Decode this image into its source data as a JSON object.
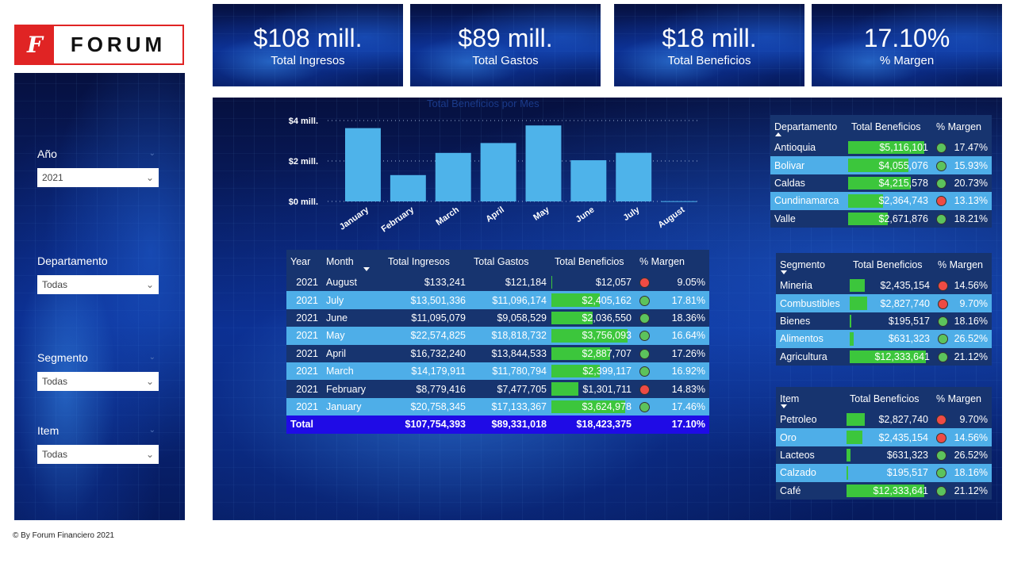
{
  "logo": {
    "letter": "F",
    "word": "FORUM"
  },
  "filters": [
    {
      "label": "Año",
      "value": "2021"
    },
    {
      "label": "Departamento",
      "value": "Todas"
    },
    {
      "label": "Segmento",
      "value": "Todas"
    },
    {
      "label": "Item",
      "value": "Todas"
    }
  ],
  "kpis": [
    {
      "value": "$108 mill.",
      "label": "Total Ingresos"
    },
    {
      "value": "$89 mill.",
      "label": "Total Gastos"
    },
    {
      "value": "$18 mill.",
      "label": "Total Beneficios"
    },
    {
      "value": "17.10%",
      "label": "% Margen"
    }
  ],
  "copyright": "© By Forum Financiero 2021",
  "chart_data": {
    "type": "bar",
    "title": "Total Beneficios por Mes",
    "categories": [
      "January",
      "February",
      "March",
      "April",
      "May",
      "June",
      "July",
      "August"
    ],
    "values": [
      3.624978,
      1.301711,
      2.399117,
      2.887707,
      3.756093,
      2.03655,
      2.405162,
      0.012057
    ],
    "yticks": [
      "$0 mill.",
      "$2 mill.",
      "$4 mill."
    ],
    "ylim": [
      0,
      4
    ],
    "bar_color": "#4eb3ea",
    "grid": true
  },
  "monthly": {
    "headers": [
      "Year",
      "Month",
      "Total Ingresos",
      "Total Gastos",
      "Total Beneficios",
      "% Margen"
    ],
    "rows": [
      {
        "year": "2021",
        "month": "August",
        "ingresos": "$133,241",
        "gastos": "$121,184",
        "beneficios": "$12,057",
        "bf": 0.003,
        "status": "red",
        "margen": "9.05%"
      },
      {
        "year": "2021",
        "month": "July",
        "ingresos": "$13,501,336",
        "gastos": "$11,096,174",
        "beneficios": "$2,405,162",
        "bf": 0.64,
        "status": "green",
        "margen": "17.81%"
      },
      {
        "year": "2021",
        "month": "June",
        "ingresos": "$11,095,079",
        "gastos": "$9,058,529",
        "beneficios": "$2,036,550",
        "bf": 0.54,
        "status": "green",
        "margen": "18.36%"
      },
      {
        "year": "2021",
        "month": "May",
        "ingresos": "$22,574,825",
        "gastos": "$18,818,732",
        "beneficios": "$3,756,093",
        "bf": 1.0,
        "status": "green",
        "margen": "16.64%"
      },
      {
        "year": "2021",
        "month": "April",
        "ingresos": "$16,732,240",
        "gastos": "$13,844,533",
        "beneficios": "$2,887,707",
        "bf": 0.77,
        "status": "green",
        "margen": "17.26%"
      },
      {
        "year": "2021",
        "month": "March",
        "ingresos": "$14,179,911",
        "gastos": "$11,780,794",
        "beneficios": "$2,399,117",
        "bf": 0.64,
        "status": "green",
        "margen": "16.92%"
      },
      {
        "year": "2021",
        "month": "February",
        "ingresos": "$8,779,416",
        "gastos": "$7,477,705",
        "beneficios": "$1,301,711",
        "bf": 0.35,
        "status": "red",
        "margen": "14.83%"
      },
      {
        "year": "2021",
        "month": "January",
        "ingresos": "$20,758,345",
        "gastos": "$17,133,367",
        "beneficios": "$3,624,978",
        "bf": 0.965,
        "status": "green",
        "margen": "17.46%"
      }
    ],
    "total": {
      "label": "Total",
      "ingresos": "$107,754,393",
      "gastos": "$89,331,018",
      "beneficios": "$18,423,375",
      "margen": "17.10%"
    }
  },
  "departamento": {
    "headers": [
      "Departamento",
      "Total Beneficios",
      "% Margen"
    ],
    "rows": [
      {
        "name": "Antioquia",
        "beneficios": "$5,116,101",
        "bf": 1.0,
        "status": "green",
        "margen": "17.47%"
      },
      {
        "name": "Bolivar",
        "beneficios": "$4,055,076",
        "bf": 0.79,
        "status": "green",
        "margen": "15.93%"
      },
      {
        "name": "Caldas",
        "beneficios": "$4,215,578",
        "bf": 0.82,
        "status": "green",
        "margen": "20.73%"
      },
      {
        "name": "Cundinamarca",
        "beneficios": "$2,364,743",
        "bf": 0.46,
        "status": "red",
        "margen": "13.13%"
      },
      {
        "name": "Valle",
        "beneficios": "$2,671,876",
        "bf": 0.52,
        "status": "green",
        "margen": "18.21%"
      }
    ]
  },
  "segmento": {
    "headers": [
      "Segmento",
      "Total Beneficios",
      "% Margen"
    ],
    "rows": [
      {
        "name": "Mineria",
        "beneficios": "$2,435,154",
        "bf": 0.2,
        "status": "red",
        "margen": "14.56%"
      },
      {
        "name": "Combustibles",
        "beneficios": "$2,827,740",
        "bf": 0.23,
        "status": "red",
        "margen": "9.70%"
      },
      {
        "name": "Bienes",
        "beneficios": "$195,517",
        "bf": 0.016,
        "status": "green",
        "margen": "18.16%"
      },
      {
        "name": "Alimentos",
        "beneficios": "$631,323",
        "bf": 0.05,
        "status": "green",
        "margen": "26.52%"
      },
      {
        "name": "Agricultura",
        "beneficios": "$12,333,641",
        "bf": 1.0,
        "status": "green",
        "margen": "21.12%"
      }
    ]
  },
  "item": {
    "headers": [
      "Item",
      "Total Beneficios",
      "% Margen"
    ],
    "rows": [
      {
        "name": "Petroleo",
        "beneficios": "$2,827,740",
        "bf": 0.23,
        "status": "red",
        "margen": "9.70%"
      },
      {
        "name": "Oro",
        "beneficios": "$2,435,154",
        "bf": 0.2,
        "status": "red",
        "margen": "14.56%"
      },
      {
        "name": "Lacteos",
        "beneficios": "$631,323",
        "bf": 0.05,
        "status": "green",
        "margen": "26.52%"
      },
      {
        "name": "Calzado",
        "beneficios": "$195,517",
        "bf": 0.016,
        "status": "green",
        "margen": "18.16%"
      },
      {
        "name": "Café",
        "beneficios": "$12,333,641",
        "bf": 1.0,
        "status": "green",
        "margen": "21.12%"
      }
    ]
  },
  "colors": {
    "green": "#5cc35c",
    "red": "#ee4b44",
    "bar_fill": "#3cc63c",
    "row_dark": "#17346f",
    "row_light": "#4eaee8",
    "total": "#1f0be6"
  }
}
